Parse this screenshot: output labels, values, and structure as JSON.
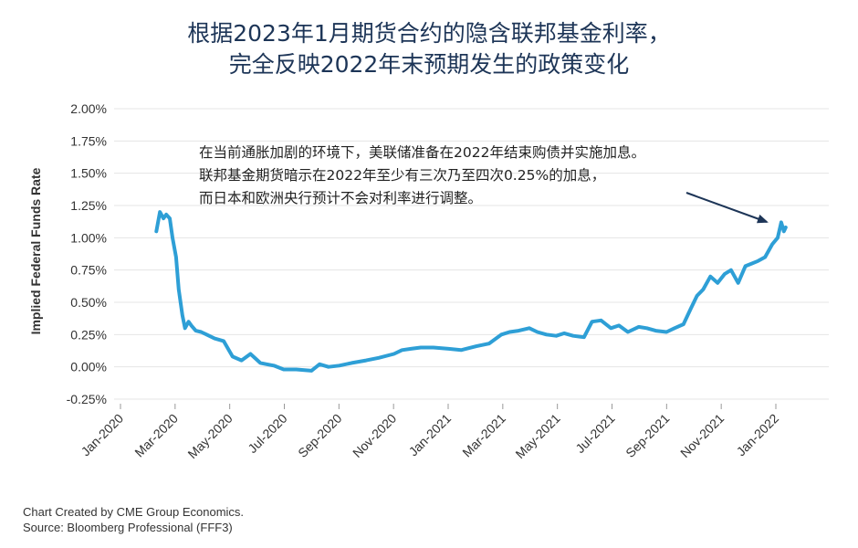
{
  "chart_data": {
    "type": "line",
    "title_lines": [
      "根据2023年1月期货合约的隐含联邦基金利率，",
      "完全反映2022年末预期发生的政策变化"
    ],
    "ylabel": "Implied Federal Funds Rate",
    "ylim": [
      -0.25,
      2.0
    ],
    "yticks": [
      -0.25,
      0,
      0.25,
      0.5,
      0.75,
      1.0,
      1.25,
      1.5,
      1.75,
      2.0
    ],
    "ytick_labels": [
      "-0.25%",
      "0.00%",
      "0.25%",
      "0.50%",
      "0.75%",
      "1.00%",
      "1.25%",
      "1.50%",
      "1.75%",
      "2.00%"
    ],
    "xtick_labels": [
      "Jan-2020",
      "Mar-2020",
      "May-2020",
      "Jul-2020",
      "Sep-2020",
      "Nov-2020",
      "Jan-2021",
      "Mar-2021",
      "May-2021",
      "Jul-2021",
      "Sep-2021",
      "Nov-2021",
      "Jan-2022"
    ],
    "grid": true,
    "line_color": "#2e9fd6",
    "series": [
      {
        "x": [
          "2020-02-10",
          "2020-02-14",
          "2020-02-18",
          "2020-02-21",
          "2020-02-25",
          "2020-02-28",
          "2020-03-03",
          "2020-03-06",
          "2020-03-10",
          "2020-03-13",
          "2020-03-17",
          "2020-03-20",
          "2020-03-25",
          "2020-03-31",
          "2020-04-06",
          "2020-04-15",
          "2020-04-25",
          "2020-05-05",
          "2020-05-15",
          "2020-05-25",
          "2020-06-05",
          "2020-06-12",
          "2020-06-20",
          "2020-07-01",
          "2020-07-15",
          "2020-08-01",
          "2020-08-10",
          "2020-08-20",
          "2020-09-01",
          "2020-09-15",
          "2020-10-01",
          "2020-10-15",
          "2020-11-01",
          "2020-11-10",
          "2020-11-20",
          "2020-12-01",
          "2020-12-15",
          "2021-01-01",
          "2021-01-15",
          "2021-02-01",
          "2021-02-15",
          "2021-03-01",
          "2021-03-10",
          "2021-03-20",
          "2021-04-01",
          "2021-04-10",
          "2021-04-20",
          "2021-05-01",
          "2021-05-10",
          "2021-05-20",
          "2021-06-01",
          "2021-06-10",
          "2021-06-20",
          "2021-07-01",
          "2021-07-10",
          "2021-07-20",
          "2021-08-01",
          "2021-08-10",
          "2021-08-20",
          "2021-09-01",
          "2021-09-10",
          "2021-09-20",
          "2021-09-28",
          "2021-10-05",
          "2021-10-12",
          "2021-10-20",
          "2021-10-28",
          "2021-11-05",
          "2021-11-12",
          "2021-11-20",
          "2021-11-28",
          "2021-12-05",
          "2021-12-12",
          "2021-12-20",
          "2021-12-28",
          "2022-01-03",
          "2022-01-07",
          "2022-01-10",
          "2022-01-12"
        ],
        "values": [
          1.05,
          1.2,
          1.15,
          1.18,
          1.15,
          1.0,
          0.85,
          0.6,
          0.4,
          0.3,
          0.35,
          0.32,
          0.28,
          0.27,
          0.25,
          0.22,
          0.2,
          0.08,
          0.05,
          0.1,
          0.03,
          0.02,
          0.01,
          -0.02,
          -0.02,
          -0.03,
          0.02,
          0.0,
          0.01,
          0.03,
          0.05,
          0.07,
          0.1,
          0.13,
          0.14,
          0.15,
          0.15,
          0.14,
          0.13,
          0.16,
          0.18,
          0.25,
          0.27,
          0.28,
          0.3,
          0.27,
          0.25,
          0.24,
          0.26,
          0.24,
          0.23,
          0.35,
          0.36,
          0.3,
          0.32,
          0.27,
          0.31,
          0.3,
          0.28,
          0.27,
          0.3,
          0.33,
          0.45,
          0.55,
          0.6,
          0.7,
          0.65,
          0.72,
          0.75,
          0.65,
          0.78,
          0.8,
          0.82,
          0.85,
          0.95,
          1.0,
          1.12,
          1.05,
          1.08
        ]
      }
    ],
    "annotation_lines": [
      "在当前通胀加剧的环境下，美联储准备在2022年结束购债并实施加息。",
      "联邦基金期货暗示在2022年至少有三次乃至四次0.25%的加息，",
      "而日本和欧洲央行预计不会对利率进行调整。"
    ]
  },
  "footer": {
    "line1": "Chart Created by CME Group Economics.",
    "line2": "Source:  Bloomberg Professional (FFF3)"
  }
}
